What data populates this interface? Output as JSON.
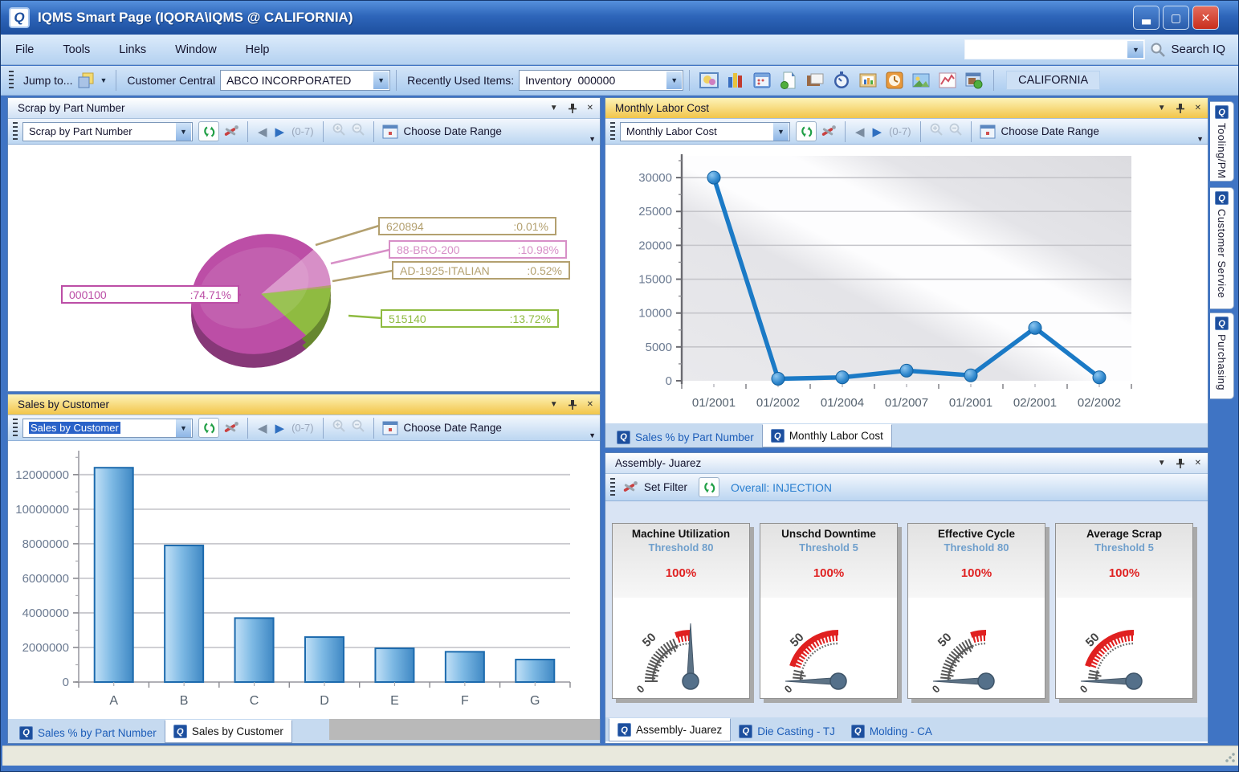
{
  "window": {
    "title": "IQMS Smart Page (IQORA\\IQMS @ CALIFORNIA)",
    "search_label": "Search IQ",
    "search_value": ""
  },
  "menu": {
    "items": [
      "File",
      "Tools",
      "Links",
      "Window",
      "Help"
    ]
  },
  "toolbar": {
    "jump_to": "Jump to...",
    "customer_central": "Customer Central",
    "customer_value": "ABCO INCORPORATED",
    "recent_label": "Recently Used Items:",
    "recent_value": "Inventory  000000",
    "location": "CALIFORNIA",
    "icons": [
      "picture-chart-icon",
      "bar-chart-icon",
      "calendar-icon",
      "report-icon",
      "layers-icon",
      "stopwatch-icon",
      "framed-chart-icon",
      "clock-icon",
      "image-icon",
      "line-graph-icon",
      "window-orb-icon"
    ]
  },
  "scrap_panel": {
    "title": "Scrap by Part Number",
    "combo_value": "Scrap by Part Number",
    "nav_range": "(0-7)",
    "date_range_label": "Choose Date Range"
  },
  "labor_panel": {
    "title": "Monthly Labor Cost",
    "combo_value": "Monthly Labor Cost",
    "nav_range": "(0-7)",
    "date_range_label": "Choose Date Range",
    "tabs": [
      {
        "label": "Sales % by Part Number"
      },
      {
        "label": "Monthly Labor Cost"
      }
    ]
  },
  "sales_panel": {
    "title": "Sales by Customer",
    "combo_value": "Sales by Customer",
    "nav_range": "(0-7)",
    "date_range_label": "Choose Date Range",
    "tabs": [
      {
        "label": "Sales % by Part Number"
      },
      {
        "label": "Sales by Customer"
      }
    ]
  },
  "assembly_panel": {
    "title": "Assembly- Juarez",
    "set_filter_label": "Set Filter",
    "overall_label": "Overall: INJECTION",
    "tabs": [
      {
        "label": "Assembly- Juarez"
      },
      {
        "label": "Die Casting - TJ"
      },
      {
        "label": "Molding - CA"
      }
    ],
    "gauge_scale": {
      "zero": "0",
      "fifty": "50"
    },
    "gauges": [
      {
        "title": "Machine Utilization",
        "threshold": "Threshold 80",
        "value": "100%",
        "needle_value": 100,
        "red_start": 80
      },
      {
        "title": "Unschd Downtime",
        "threshold": "Threshold 5",
        "value": "100%",
        "needle_value": 0,
        "red_start": 20
      },
      {
        "title": "Effective Cycle",
        "threshold": "Threshold 80",
        "value": "100%",
        "needle_value": 0,
        "red_start": 80
      },
      {
        "title": "Average Scrap",
        "threshold": "Threshold 5",
        "value": "100%",
        "needle_value": 0,
        "red_start": 20
      }
    ]
  },
  "side_tabs": [
    {
      "label": "Tooling/PM"
    },
    {
      "label": "Customer Service"
    },
    {
      "label": "Purchasing"
    }
  ],
  "chart_data": [
    {
      "id": "scrap_pie",
      "type": "pie",
      "title": "Scrap by Part Number",
      "slices": [
        {
          "label": "000100",
          "value": 74.71,
          "display": ":74.71%",
          "color": "#bc4ea6"
        },
        {
          "label": "515140",
          "value": 13.72,
          "display": ":13.72%",
          "color": "#8fbb41"
        },
        {
          "label": "88-BRO-200",
          "value": 10.98,
          "display": ":10.98%",
          "color": "#d78fc7"
        },
        {
          "label": "AD-1925-ITALIAN",
          "value": 0.52,
          "display": ":0.52%",
          "color": "#b3a06f"
        },
        {
          "label": "620894",
          "value": 0.01,
          "display": ":0.01%",
          "color": "#b3a06f"
        }
      ],
      "legend_position": "callouts"
    },
    {
      "id": "labor_line",
      "type": "line",
      "title": "Monthly Labor Cost",
      "categories": [
        "01/2001",
        "01/2002",
        "01/2004",
        "01/2007",
        "01/2001",
        "02/2001",
        "02/2002"
      ],
      "values": [
        30000,
        300,
        500,
        1500,
        800,
        7800,
        500
      ],
      "yticks": [
        0,
        5000,
        10000,
        15000,
        20000,
        25000,
        30000
      ],
      "ylim": [
        0,
        32500
      ],
      "grid": true,
      "color": "#1b7ac6"
    },
    {
      "id": "sales_bar",
      "type": "bar",
      "title": "Sales by Customer",
      "categories": [
        "A",
        "B",
        "C",
        "D",
        "E",
        "F",
        "G"
      ],
      "values": [
        12400000,
        7900000,
        3700000,
        2600000,
        1950000,
        1750000,
        1300000
      ],
      "yticks": [
        0,
        2000000,
        4000000,
        6000000,
        8000000,
        10000000,
        12000000
      ],
      "ylim": [
        0,
        13200000
      ],
      "grid": true,
      "color": "#4a96d2"
    }
  ]
}
